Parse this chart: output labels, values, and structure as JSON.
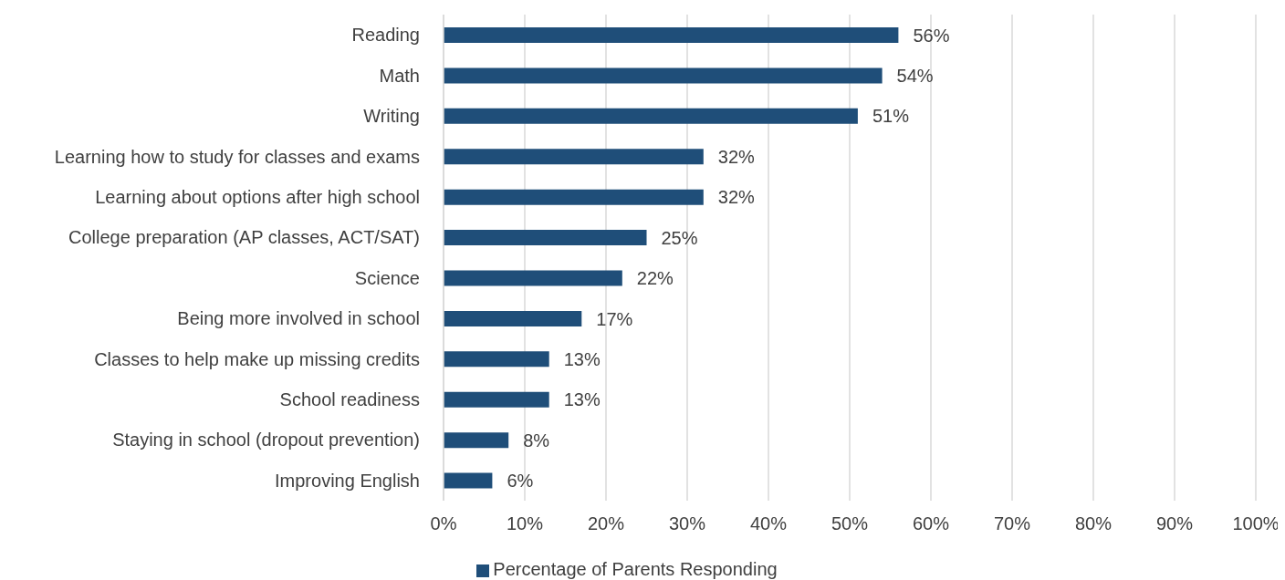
{
  "chart_data": {
    "type": "bar",
    "orientation": "horizontal",
    "categories": [
      "Reading",
      "Math",
      "Writing",
      "Learning how to study for classes and exams",
      "Learning about options after high school",
      "College preparation (AP classes, ACT/SAT)",
      "Science",
      "Being more involved in school",
      "Classes to help make up missing credits",
      "School readiness",
      "Staying in school (dropout prevention)",
      "Improving English"
    ],
    "series": [
      {
        "name": "Percentage of Parents Responding",
        "color": "#1f4e79",
        "values": [
          56,
          54,
          51,
          32,
          32,
          25,
          22,
          17,
          13,
          13,
          8,
          6
        ],
        "value_labels": [
          "56%",
          "54%",
          "51%",
          "32%",
          "32%",
          "25%",
          "22%",
          "17%",
          "13%",
          "13%",
          "8%",
          "6%"
        ]
      }
    ],
    "xlim": [
      0,
      100
    ],
    "xticks": [
      {
        "value": 0,
        "label": "0%"
      },
      {
        "value": 10,
        "label": "10%"
      },
      {
        "value": 20,
        "label": "20%"
      },
      {
        "value": 30,
        "label": "30%"
      },
      {
        "value": 40,
        "label": "40%"
      },
      {
        "value": 50,
        "label": "50%"
      },
      {
        "value": 60,
        "label": "60%"
      },
      {
        "value": 70,
        "label": "70%"
      },
      {
        "value": 80,
        "label": "80%"
      },
      {
        "value": 90,
        "label": "90%"
      },
      {
        "value": 100,
        "label": "100%"
      }
    ],
    "grid": "x",
    "legend": "bottom"
  }
}
